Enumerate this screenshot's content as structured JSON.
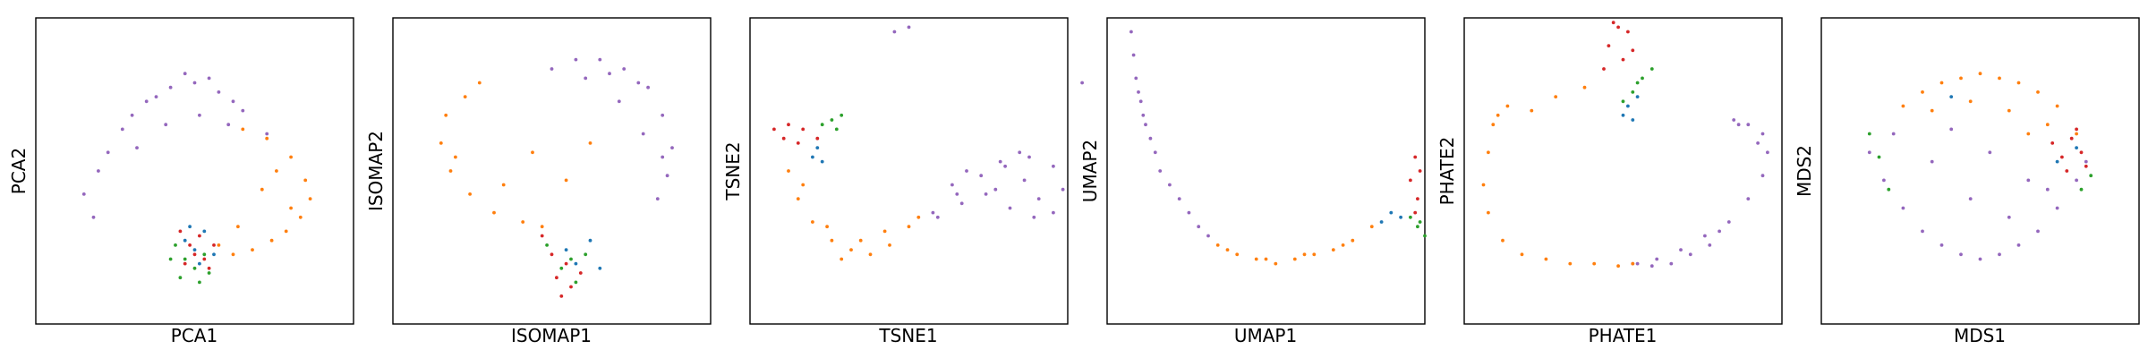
{
  "figure": {
    "marker_radius": 1.9,
    "colors": {
      "blue": "#1f77b4",
      "orange": "#ff7f0e",
      "green": "#2ca02c",
      "red": "#d62728",
      "purple": "#9467bd"
    }
  },
  "chart_data": [
    {
      "type": "scatter",
      "xlabel": "PCA1",
      "ylabel": "PCA2",
      "axes_ticks": "none",
      "grid": false,
      "legend": "none",
      "series": [
        {
          "color": "#9467bd",
          "x": [
            -2.0,
            -1.5,
            -1.0,
            -0.5,
            0.0,
            0.5,
            1.0,
            1.5,
            -2.3,
            -2.1,
            -1.8,
            -1.3,
            -0.8,
            -0.2,
            0.3,
            0.8,
            -1.2,
            -0.6,
            0.1,
            0.7
          ],
          "y": [
            0.0,
            0.9,
            1.5,
            1.8,
            1.9,
            1.7,
            1.3,
            0.8,
            -0.5,
            -1.0,
            0.4,
            1.2,
            1.6,
            2.1,
            2.0,
            1.5,
            0.5,
            1.0,
            1.2,
            1.0
          ]
        },
        {
          "color": "#ff7f0e",
          "x": [
            1.0,
            1.5,
            2.0,
            2.3,
            2.4,
            2.2,
            1.9,
            1.6,
            1.2,
            0.8,
            0.5,
            1.7,
            2.0,
            1.4,
            0.9
          ],
          "y": [
            0.9,
            0.7,
            0.3,
            -0.2,
            -0.6,
            -1.0,
            -1.3,
            -1.5,
            -1.7,
            -1.8,
            -1.6,
            0.0,
            -0.8,
            -0.4,
            -1.2
          ]
        },
        {
          "color": "#2ca02c",
          "x": [
            -0.4,
            -0.2,
            0.0,
            0.2,
            -0.3,
            0.1,
            -0.5,
            0.3
          ],
          "y": [
            -1.6,
            -1.9,
            -2.1,
            -1.8,
            -2.3,
            -2.4,
            -1.9,
            -2.2
          ]
        },
        {
          "color": "#d62728",
          "x": [
            -0.3,
            -0.1,
            0.1,
            0.2,
            0.4,
            -0.2,
            0.0,
            0.3
          ],
          "y": [
            -1.3,
            -1.6,
            -1.4,
            -1.9,
            -1.6,
            -2.0,
            -1.8,
            -2.1
          ]
        },
        {
          "color": "#1f77b4",
          "x": [
            -0.2,
            0.0,
            0.2,
            0.4,
            0.1,
            -0.1
          ],
          "y": [
            -1.5,
            -1.7,
            -1.3,
            -1.8,
            -2.0,
            -1.2
          ]
        }
      ]
    },
    {
      "type": "scatter",
      "xlabel": "ISOMAP1",
      "ylabel": "ISOMAP2",
      "axes_ticks": "none",
      "grid": false,
      "legend": "none",
      "series": [
        {
          "color": "#9467bd",
          "x": [
            0.0,
            0.5,
            1.0,
            1.5,
            2.0,
            2.3,
            2.5,
            2.4,
            2.2,
            1.8,
            1.2,
            0.7,
            1.9,
            2.3,
            1.4
          ],
          "y": [
            2.2,
            2.4,
            2.4,
            2.2,
            1.8,
            1.2,
            0.5,
            -0.1,
            -0.6,
            1.9,
            2.1,
            2.0,
            0.8,
            0.3,
            1.5
          ]
        },
        {
          "color": "#ff7f0e",
          "x": [
            -1.8,
            -2.2,
            -2.3,
            -2.1,
            -1.7,
            -1.2,
            -0.6,
            -0.2,
            -1.5,
            -2.0,
            -1.0,
            -0.4,
            0.3,
            0.8
          ],
          "y": [
            1.6,
            1.2,
            0.6,
            0.0,
            -0.5,
            -0.9,
            -1.1,
            -1.2,
            1.9,
            0.3,
            -0.3,
            0.4,
            -0.2,
            0.6
          ]
        },
        {
          "color": "#d62728",
          "x": [
            -0.2,
            0.0,
            0.3,
            0.1,
            0.4,
            0.6,
            0.2
          ],
          "y": [
            -1.4,
            -1.8,
            -2.0,
            -2.3,
            -2.5,
            -2.2,
            -2.7
          ]
        },
        {
          "color": "#2ca02c",
          "x": [
            -0.1,
            0.2,
            0.4,
            0.7,
            0.5
          ],
          "y": [
            -1.6,
            -2.1,
            -1.9,
            -1.8,
            -2.4
          ]
        },
        {
          "color": "#1f77b4",
          "x": [
            0.3,
            0.5,
            0.8,
            1.0
          ],
          "y": [
            -1.7,
            -2.0,
            -1.5,
            -2.1
          ]
        }
      ]
    },
    {
      "type": "scatter",
      "xlabel": "TSNE1",
      "ylabel": "TSNE2",
      "axes_ticks": "none",
      "grid": false,
      "legend": "none",
      "series": [
        {
          "color": "#9467bd",
          "x": [
            0.5,
            1.0,
            1.5,
            2.0,
            2.5,
            3.0,
            3.2,
            3.0,
            2.6,
            2.1,
            1.6,
            1.1,
            0.6,
            1.8,
            2.4,
            1.2,
            1.9,
            2.7,
            0.9,
            2.3
          ],
          "y": [
            -0.9,
            -0.5,
            -0.1,
            0.1,
            0.3,
            0.1,
            -0.4,
            -0.9,
            -1.0,
            -0.8,
            -0.5,
            -0.7,
            -1.0,
            -0.4,
            -0.2,
            0.0,
            0.2,
            -0.6,
            -0.3,
            0.4
          ]
        },
        {
          "color": "#ff7f0e",
          "x": [
            -2.5,
            -2.3,
            -2.0,
            -1.6,
            -1.2,
            -0.8,
            -0.4,
            0.0,
            -2.2,
            -1.7,
            -1.0,
            -0.5,
            0.2,
            -1.4
          ],
          "y": [
            0.0,
            -0.6,
            -1.1,
            -1.5,
            -1.7,
            -1.8,
            -1.6,
            -1.2,
            -0.3,
            -1.2,
            -1.5,
            -1.3,
            -1.0,
            -1.9
          ]
        },
        {
          "color": "#d62728",
          "x": [
            -2.8,
            -2.5,
            -2.2,
            -1.9,
            -2.6,
            -2.3
          ],
          "y": [
            0.9,
            1.0,
            0.9,
            0.7,
            0.7,
            0.6
          ]
        },
        {
          "color": "#2ca02c",
          "x": [
            -1.8,
            -1.6,
            -1.5,
            -1.4
          ],
          "y": [
            1.0,
            1.1,
            0.9,
            1.2
          ]
        },
        {
          "color": "#1f77b4",
          "x": [
            -2.0,
            -1.9,
            -1.8
          ],
          "y": [
            0.3,
            0.5,
            0.2
          ]
        },
        {
          "color": "#9467bd",
          "x": [
            -0.3,
            0.0,
            3.6
          ],
          "y": [
            3.0,
            3.1,
            1.9
          ]
        }
      ]
    },
    {
      "type": "scatter",
      "xlabel": "UMAP1",
      "ylabel": "UMAP2",
      "axes_ticks": "none",
      "grid": false,
      "legend": "none",
      "series": [
        {
          "color": "#9467bd",
          "x": [
            -2.8,
            -2.75,
            -2.7,
            -2.6,
            -2.5,
            -2.3,
            -2.0,
            -1.6,
            -1.2,
            -2.65,
            -2.4,
            -1.8,
            -1.4,
            -2.55,
            -2.2
          ],
          "y": [
            3.0,
            2.5,
            2.0,
            1.5,
            1.0,
            0.4,
            -0.3,
            -0.9,
            -1.4,
            1.7,
            0.7,
            -0.6,
            -1.2,
            1.2,
            0.0
          ]
        },
        {
          "color": "#ff7f0e",
          "x": [
            -1.0,
            -0.6,
            -0.2,
            0.2,
            0.6,
            1.0,
            1.4,
            1.8,
            2.2,
            0.0,
            0.8,
            1.6,
            -0.8
          ],
          "y": [
            -1.6,
            -1.8,
            -1.9,
            -2.0,
            -1.9,
            -1.8,
            -1.7,
            -1.5,
            -1.2,
            -1.9,
            -1.8,
            -1.6,
            -1.7
          ]
        },
        {
          "color": "#1f77b4",
          "x": [
            2.4,
            2.6,
            2.8
          ],
          "y": [
            -1.1,
            -0.9,
            -1.0
          ]
        },
        {
          "color": "#d62728",
          "x": [
            3.0,
            3.1,
            3.15,
            3.2,
            3.1
          ],
          "y": [
            -0.2,
            0.3,
            -0.6,
            0.0,
            -0.9
          ]
        },
        {
          "color": "#2ca02c",
          "x": [
            3.0,
            3.15,
            3.3,
            3.2
          ],
          "y": [
            -1.0,
            -1.2,
            -1.4,
            -1.1
          ]
        }
      ]
    },
    {
      "type": "scatter",
      "xlabel": "PHATE1",
      "ylabel": "PHATE2",
      "axes_ticks": "none",
      "grid": false,
      "legend": "none",
      "series": [
        {
          "color": "#9467bd",
          "x": [
            0.2,
            0.7,
            1.2,
            1.7,
            2.2,
            2.6,
            2.9,
            3.0,
            2.9,
            2.6,
            2.3,
            1.8,
            1.4,
            1.0,
            0.6,
            0.3,
            2.0,
            2.4,
            2.8
          ],
          "y": [
            -2.0,
            -1.9,
            -1.7,
            -1.4,
            -1.1,
            -0.6,
            -0.1,
            0.4,
            0.8,
            1.0,
            1.1,
            -1.6,
            -1.8,
            -2.0,
            -2.05,
            -2.0,
            -1.3,
            1.0,
            0.6
          ]
        },
        {
          "color": "#ff7f0e",
          "x": [
            -2.7,
            -2.8,
            -2.9,
            -2.8,
            -2.5,
            -2.1,
            -1.6,
            -1.1,
            -0.6,
            -0.1,
            0.2,
            -1.9,
            -2.4,
            -1.4,
            -0.8,
            -2.6
          ],
          "y": [
            1.0,
            0.4,
            -0.3,
            -0.9,
            -1.5,
            -1.8,
            -1.9,
            -2.0,
            -2.0,
            -2.05,
            -2.0,
            1.3,
            1.4,
            1.6,
            1.8,
            1.2
          ]
        },
        {
          "color": "#d62728",
          "x": [
            -0.4,
            -0.3,
            -0.1,
            0.1,
            0.2,
            -0.2,
            0.0
          ],
          "y": [
            2.2,
            2.7,
            3.1,
            3.0,
            2.6,
            3.2,
            2.4
          ]
        },
        {
          "color": "#2ca02c",
          "x": [
            0.0,
            0.2,
            0.4,
            0.6,
            0.3
          ],
          "y": [
            1.5,
            1.7,
            2.0,
            2.2,
            1.9
          ]
        },
        {
          "color": "#1f77b4",
          "x": [
            0.0,
            0.1,
            0.2,
            0.3
          ],
          "y": [
            1.2,
            1.4,
            1.1,
            1.6
          ]
        }
      ]
    },
    {
      "type": "scatter",
      "xlabel": "MDS1",
      "ylabel": "MDS2",
      "axes_ticks": "none",
      "grid": false,
      "legend": "none",
      "series": [
        {
          "color": "#9467bd",
          "x": [
            -2.3,
            -2.0,
            -1.6,
            -1.2,
            -0.8,
            -0.4,
            0.0,
            0.4,
            0.8,
            1.2,
            1.6,
            2.0,
            2.2,
            -1.8,
            -1.0,
            -0.2,
            0.6,
            1.4,
            -0.6,
            0.2,
            1.0
          ],
          "y": [
            0.4,
            -0.2,
            -0.8,
            -1.3,
            -1.6,
            -1.8,
            -1.9,
            -1.8,
            -1.6,
            -1.3,
            -0.8,
            -0.2,
            0.2,
            0.8,
            0.2,
            -0.6,
            -1.0,
            -0.4,
            0.9,
            0.4,
            -0.2
          ]
        },
        {
          "color": "#ff7f0e",
          "x": [
            -1.6,
            -1.2,
            -0.8,
            -0.4,
            0.0,
            0.4,
            0.8,
            1.2,
            1.6,
            -1.0,
            -0.2,
            0.6,
            1.4,
            2.0,
            1.0
          ],
          "y": [
            1.4,
            1.7,
            1.9,
            2.0,
            2.1,
            2.0,
            1.9,
            1.7,
            1.4,
            1.3,
            1.5,
            1.3,
            1.0,
            0.8,
            0.8
          ]
        },
        {
          "color": "#d62728",
          "x": [
            1.5,
            1.7,
            1.9,
            2.1,
            2.2,
            1.8,
            2.0
          ],
          "y": [
            0.6,
            0.3,
            0.7,
            0.4,
            0.1,
            0.0,
            0.9
          ]
        },
        {
          "color": "#2ca02c",
          "x": [
            -2.3,
            -2.1,
            2.3,
            2.1,
            -1.9
          ],
          "y": [
            0.8,
            0.3,
            -0.1,
            -0.4,
            -0.4
          ]
        },
        {
          "color": "#1f77b4",
          "x": [
            2.0,
            1.6,
            -0.6
          ],
          "y": [
            0.5,
            0.2,
            1.6
          ]
        }
      ]
    }
  ]
}
